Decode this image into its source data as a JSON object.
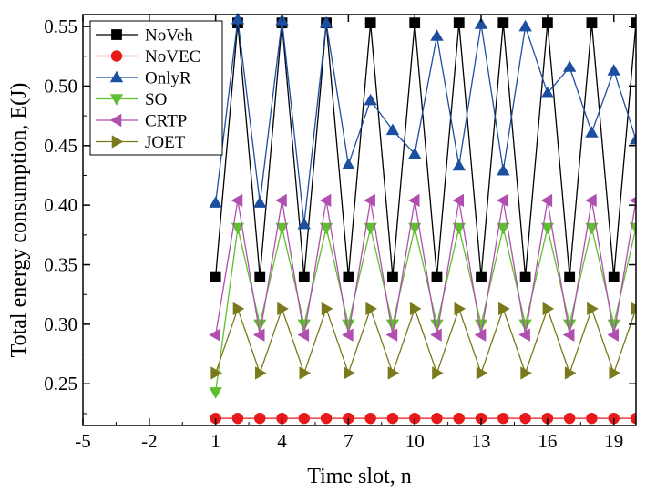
{
  "chart_data": {
    "type": "line",
    "xlabel": "Time slot, n",
    "ylabel": "Total energy consumption, E(J)",
    "xlim": [
      -5,
      20
    ],
    "ylim": [
      0.215,
      0.56
    ],
    "xticks": [
      -5,
      -2,
      1,
      4,
      7,
      10,
      13,
      16,
      19
    ],
    "xtick_labels": [
      "-5",
      "-2",
      "1",
      "4",
      "7",
      "10",
      "13",
      "16",
      "19"
    ],
    "yticks": [
      0.25,
      0.3,
      0.35,
      0.4,
      0.45,
      0.5,
      0.55
    ],
    "ytick_labels": [
      "0.25",
      "0.30",
      "0.35",
      "0.40",
      "0.45",
      "0.50",
      "0.55"
    ],
    "legend_position": "top-left",
    "grid": false,
    "x": [
      1,
      2,
      3,
      4,
      5,
      6,
      7,
      8,
      9,
      10,
      11,
      12,
      13,
      14,
      15,
      16,
      17,
      18,
      19,
      20
    ],
    "series": [
      {
        "name": "NoVeh",
        "color": "#000000",
        "marker": "square",
        "values": [
          0.34,
          0.553,
          0.34,
          0.553,
          0.34,
          0.553,
          0.34,
          0.553,
          0.34,
          0.553,
          0.34,
          0.553,
          0.34,
          0.553,
          0.34,
          0.553,
          0.34,
          0.553,
          0.34,
          0.553
        ]
      },
      {
        "name": "NoVEC",
        "color": "#e8191b",
        "marker": "circle",
        "values": [
          0.221,
          0.221,
          0.221,
          0.221,
          0.221,
          0.221,
          0.221,
          0.221,
          0.221,
          0.221,
          0.221,
          0.221,
          0.221,
          0.221,
          0.221,
          0.221,
          0.221,
          0.221,
          0.221,
          0.221
        ]
      },
      {
        "name": "OnlyR",
        "color": "#1c4fa0",
        "marker": "triangle-up",
        "values": [
          0.402,
          0.556,
          0.402,
          0.555,
          0.384,
          0.553,
          0.434,
          0.488,
          0.463,
          0.443,
          0.542,
          0.433,
          0.552,
          0.429,
          0.55,
          0.494,
          0.516,
          0.461,
          0.513,
          0.455
        ]
      },
      {
        "name": "SO",
        "color": "#5fbf2e",
        "marker": "triangle-down",
        "values": [
          0.243,
          0.381,
          0.3,
          0.381,
          0.3,
          0.381,
          0.3,
          0.381,
          0.3,
          0.381,
          0.3,
          0.381,
          0.3,
          0.381,
          0.3,
          0.381,
          0.3,
          0.381,
          0.3,
          0.381
        ]
      },
      {
        "name": "CRTP",
        "color": "#b04fb0",
        "marker": "triangle-left",
        "values": [
          0.291,
          0.404,
          0.291,
          0.404,
          0.291,
          0.404,
          0.291,
          0.404,
          0.291,
          0.404,
          0.291,
          0.404,
          0.291,
          0.404,
          0.291,
          0.404,
          0.291,
          0.404,
          0.291,
          0.404
        ]
      },
      {
        "name": "JOET",
        "color": "#7a7a1c",
        "marker": "triangle-right",
        "values": [
          0.259,
          0.313,
          0.259,
          0.313,
          0.259,
          0.313,
          0.259,
          0.313,
          0.259,
          0.313,
          0.259,
          0.313,
          0.259,
          0.313,
          0.259,
          0.313,
          0.259,
          0.313,
          0.259,
          0.313
        ]
      }
    ]
  }
}
